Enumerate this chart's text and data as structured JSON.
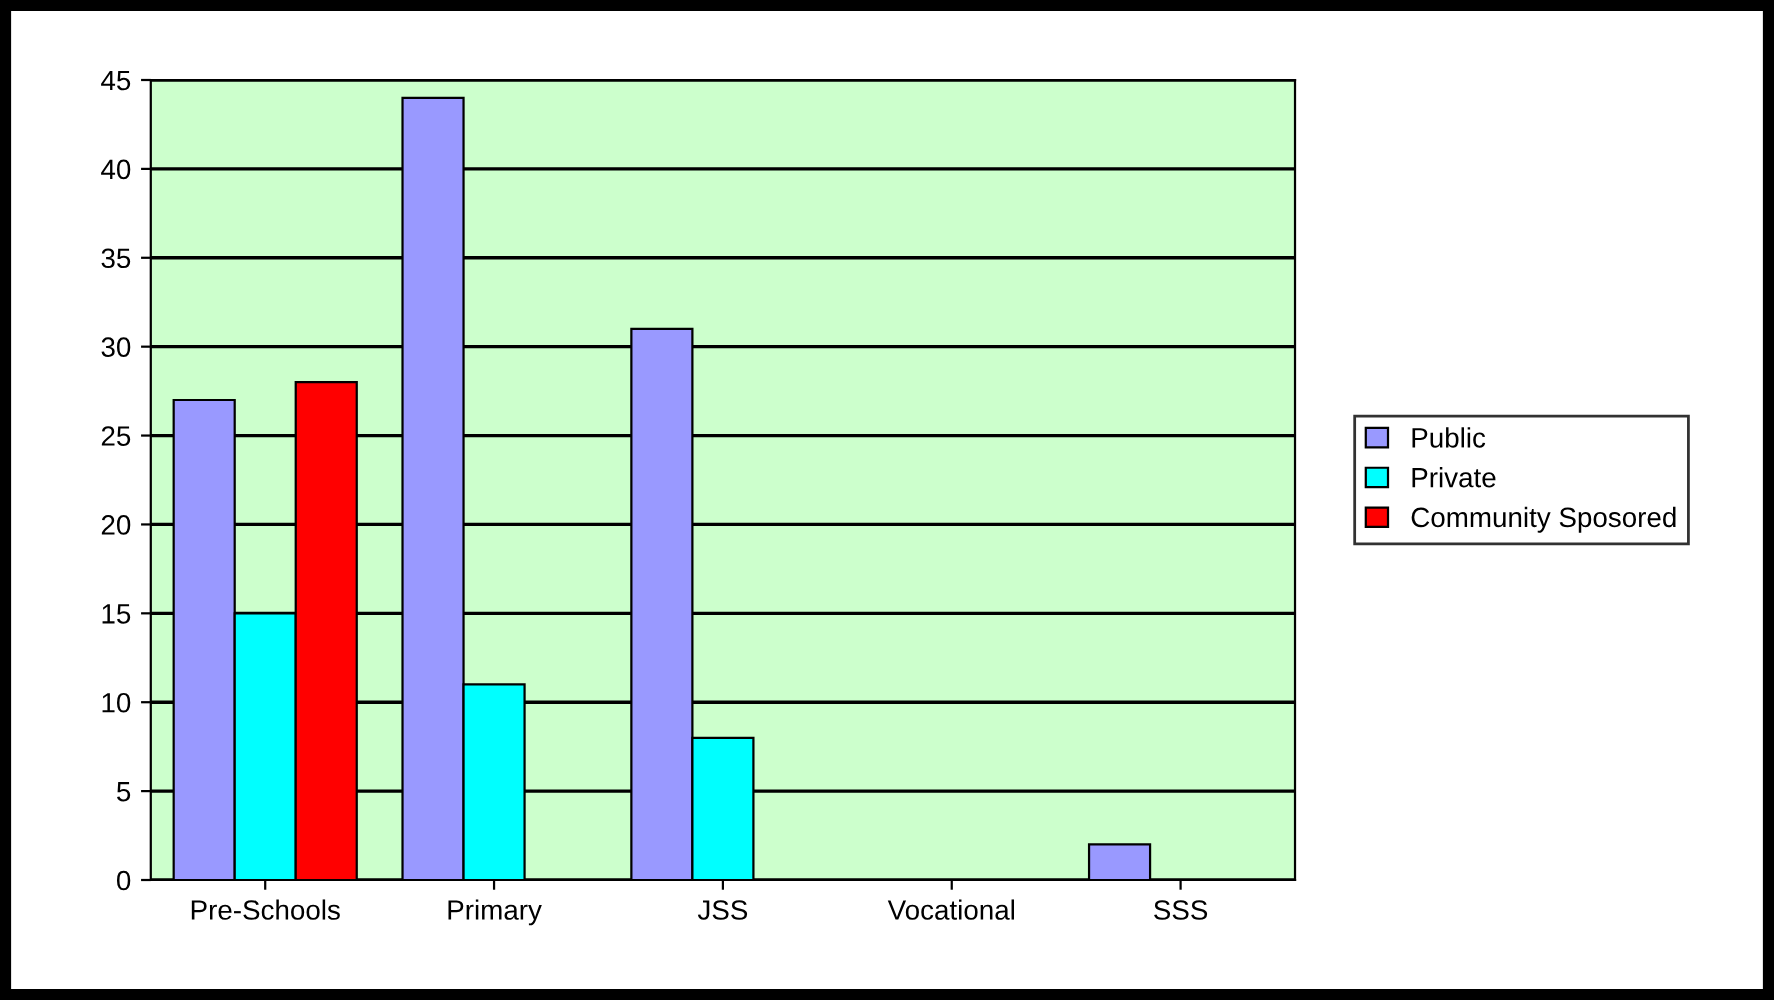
{
  "chart_data": {
    "type": "bar",
    "categories": [
      "Pre-Schools",
      "Primary",
      "JSS",
      "Vocational",
      "SSS"
    ],
    "series": [
      {
        "name": "Public",
        "color": "#9999ff",
        "values": [
          27,
          44,
          31,
          0,
          2
        ]
      },
      {
        "name": "Private",
        "color": "#00ffff",
        "values": [
          15,
          11,
          8,
          0,
          0
        ]
      },
      {
        "name": "Community Sposored",
        "color": "#ff0000",
        "values": [
          28,
          0,
          0,
          0,
          0
        ]
      }
    ],
    "ylim": [
      0,
      45
    ],
    "yticks": [
      0,
      5,
      10,
      15,
      20,
      25,
      30,
      35,
      40,
      45
    ],
    "grid": "y",
    "legend": "right"
  }
}
